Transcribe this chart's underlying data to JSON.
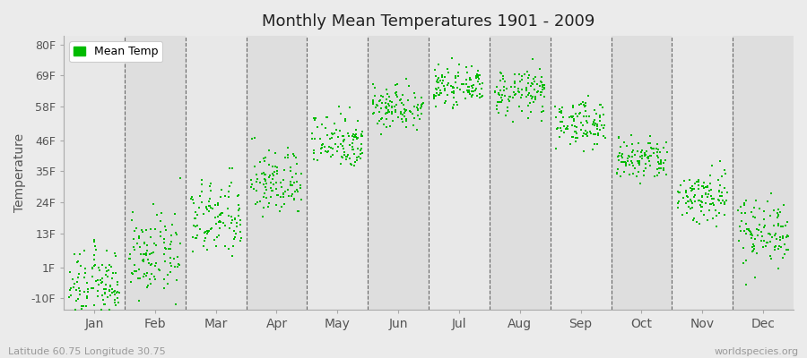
{
  "title": "Monthly Mean Temperatures 1901 - 2009",
  "ylabel": "Temperature",
  "ytick_labels": [
    "-10F",
    "1F",
    "13F",
    "24F",
    "35F",
    "46F",
    "58F",
    "69F",
    "80F"
  ],
  "ytick_values": [
    -10,
    1,
    13,
    24,
    35,
    46,
    58,
    69,
    80
  ],
  "ylim": [
    -14,
    83
  ],
  "months": [
    "Jan",
    "Feb",
    "Mar",
    "Apr",
    "May",
    "Jun",
    "Jul",
    "Aug",
    "Sep",
    "Oct",
    "Nov",
    "Dec"
  ],
  "month_centers": [
    0.5,
    1.5,
    2.5,
    3.5,
    4.5,
    5.5,
    6.5,
    7.5,
    8.5,
    9.5,
    10.5,
    11.5
  ],
  "xlim": [
    0,
    12
  ],
  "dot_color": "#00bb00",
  "dot_size": 3,
  "background_color": "#ebebeb",
  "band_colors": [
    "#e8e8e8",
    "#dedede"
  ],
  "legend_label": "Mean Temp",
  "subtitle_left": "Latitude 60.75 Longitude 30.75",
  "subtitle_right": "worldspecies.org",
  "n_years": 109,
  "mean_temps_f": [
    -5,
    5,
    18,
    31,
    46,
    58,
    65,
    63,
    52,
    39,
    26,
    14
  ],
  "std_temps_f": [
    6,
    7,
    7,
    6,
    5,
    4,
    3,
    4,
    4,
    4,
    5,
    6
  ]
}
